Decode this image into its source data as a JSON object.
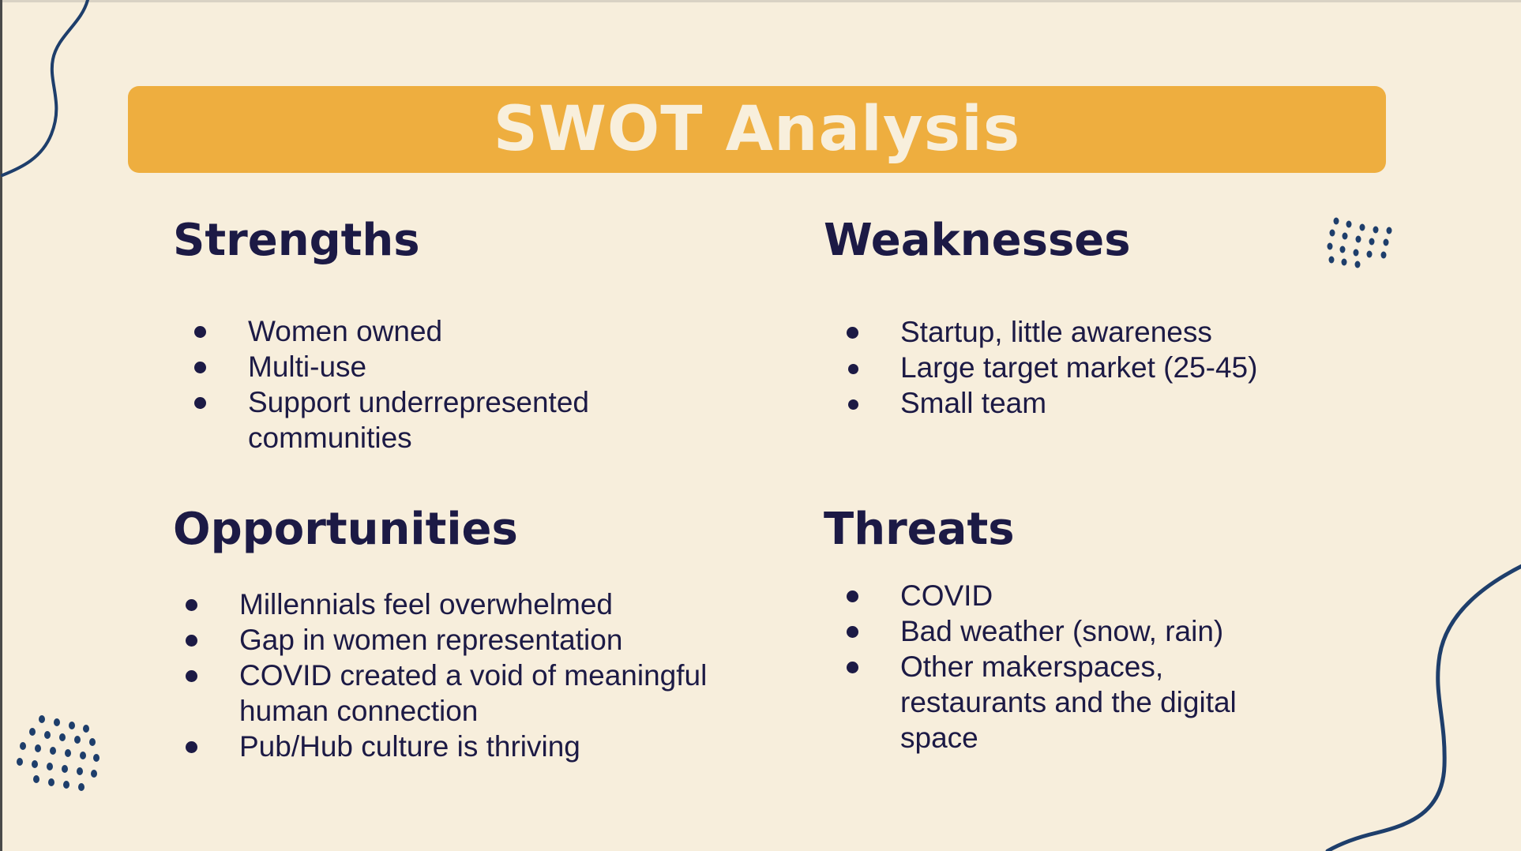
{
  "slide": {
    "title": "SWOT Analysis",
    "colors": {
      "background": "#f7eedc",
      "title_bar": "#eeae3f",
      "title_text": "#f8efdc",
      "text": "#1c1a45",
      "decoration": "#1e3e6b"
    },
    "strengths": {
      "heading": "Strengths",
      "items": [
        "Women owned",
        "Multi-use",
        "Support underrepresented communities"
      ]
    },
    "weaknesses": {
      "heading": "Weaknesses",
      "items": [
        "Startup, little awareness",
        "Large target market (25-45)",
        "Small team"
      ]
    },
    "opportunities": {
      "heading": "Opportunities",
      "items": [
        "Millennials feel overwhelmed",
        "Gap in women representation",
        "COVID created a void of meaningful human connection",
        "Pub/Hub culture is thriving"
      ]
    },
    "threats": {
      "heading": "Threats",
      "items": [
        "COVID",
        "Bad weather (snow, rain)",
        "Other makerspaces, restaurants and the digital space"
      ]
    },
    "decorations": [
      "wavy-line-top-left",
      "dot-pattern-top-right",
      "dot-pattern-bottom-left",
      "wavy-line-bottom-right"
    ]
  }
}
